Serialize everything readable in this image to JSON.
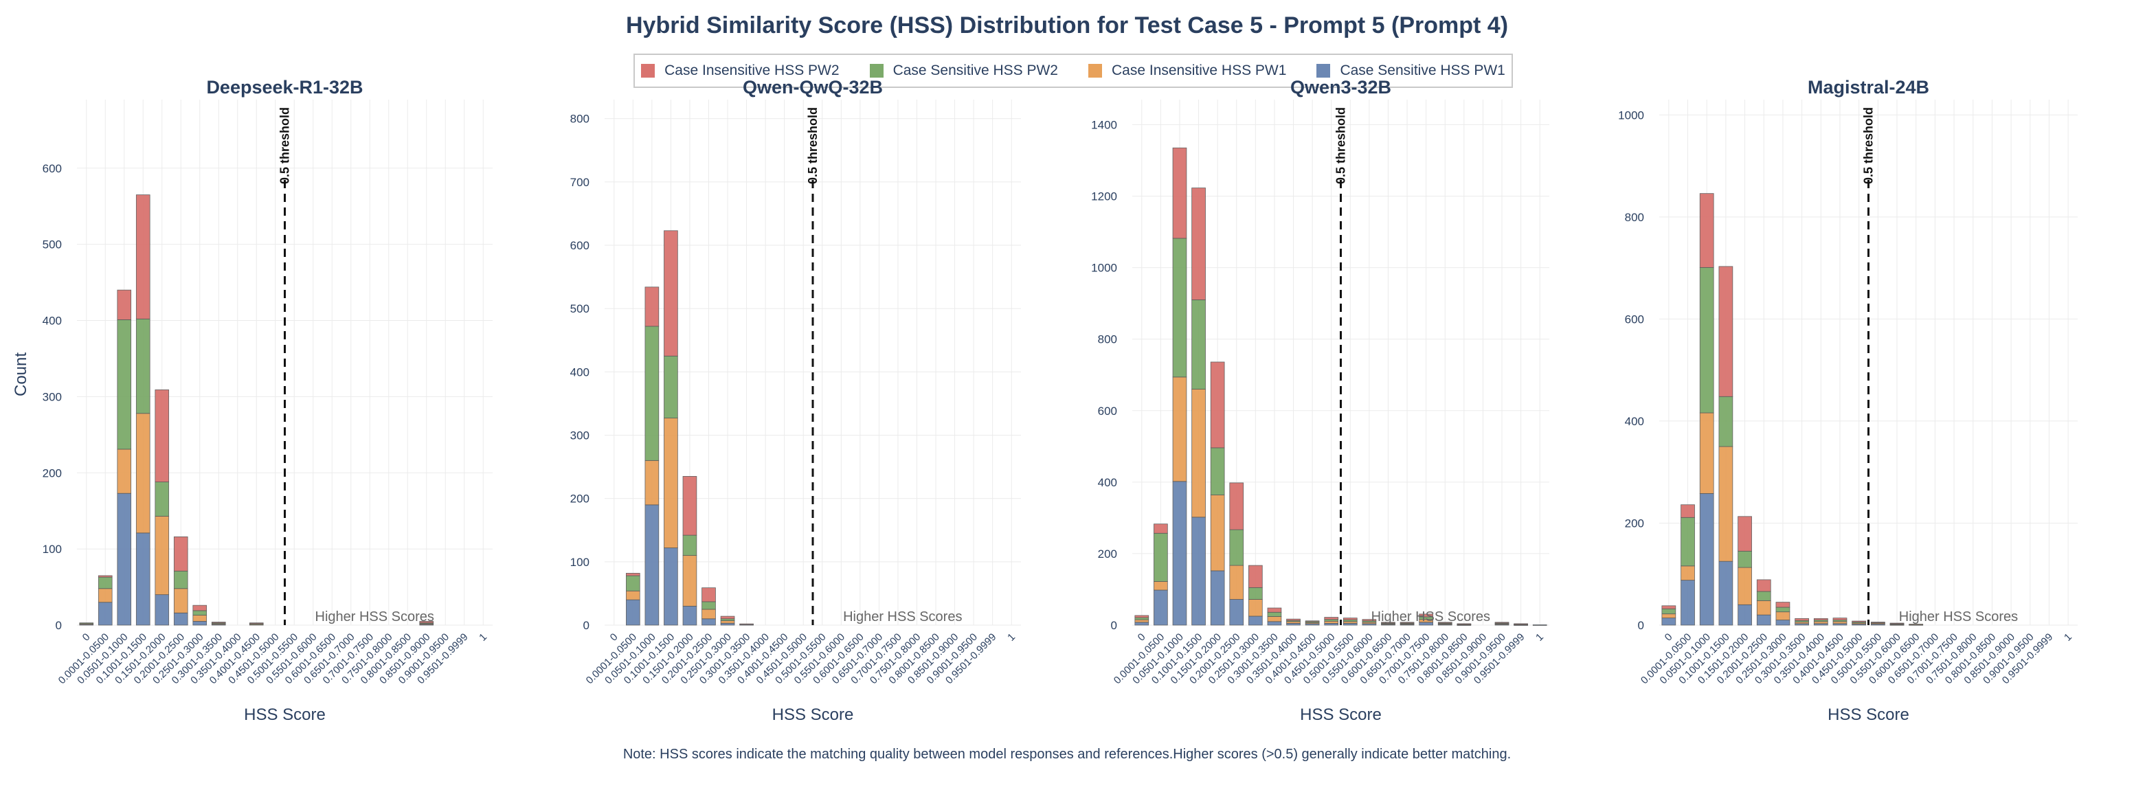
{
  "title": "Hybrid Similarity Score (HSS) Distribution for Test Case 5 - Prompt 5 (Prompt 4)",
  "note": "Note: HSS scores indicate the matching quality between model responses and references.Higher scores (>0.5) generally indicate better matching.",
  "ylabel": "Count",
  "xlabel": "HSS Score",
  "threshold_label": "0.5 threshold",
  "region_label": "Higher HSS Scores",
  "colors": {
    "Case Sensitive HSS PW1": "#6b87b3",
    "Case Insensitive HSS PW1": "#e8a15a",
    "Case Sensitive HSS PW2": "#7caa6a",
    "Case Insensitive HSS PW2": "#d9736f"
  },
  "legend": [
    "Case Insensitive HSS PW2",
    "Case Sensitive HSS PW2",
    "Case Insensitive HSS PW1",
    "Case Sensitive HSS PW1"
  ],
  "chart_data": [
    {
      "type": "bar",
      "stacked": true,
      "title": "Deepseek-R1-32B",
      "categories": [
        "0",
        "0.0001-0.0500",
        "0.0501-0.1000",
        "0.1001-0.1500",
        "0.1501-0.2000",
        "0.2001-0.2500",
        "0.2501-0.3000",
        "0.3001-0.3500",
        "0.3501-0.4000",
        "0.4001-0.4500",
        "0.4501-0.5000",
        "0.5001-0.5500",
        "0.5501-0.6000",
        "0.6001-0.6500",
        "0.6501-0.7000",
        "0.7001-0.7500",
        "0.7501-0.8000",
        "0.8001-0.8500",
        "0.8501-0.9000",
        "0.9001-0.9500",
        "0.9501-0.9999",
        "1"
      ],
      "ylim": [
        0,
        690
      ],
      "yticks": [
        0,
        100,
        200,
        300,
        400,
        500,
        600
      ],
      "threshold_index": 11,
      "series": [
        {
          "name": "Case Sensitive HSS PW1",
          "values": [
            1,
            30,
            173,
            121,
            40,
            16,
            5,
            1,
            0,
            0,
            0,
            0,
            0,
            0,
            0,
            0,
            0,
            0,
            1,
            0,
            0,
            0
          ]
        },
        {
          "name": "Case Insensitive HSS PW1",
          "values": [
            1,
            18,
            58,
            157,
            103,
            32,
            8,
            1,
            0,
            1,
            0,
            0,
            0,
            0,
            0,
            0,
            0,
            0,
            1,
            0,
            0,
            0
          ]
        },
        {
          "name": "Case Sensitive HSS PW2",
          "values": [
            1,
            15,
            170,
            124,
            45,
            23,
            6,
            1,
            0,
            1,
            0,
            0,
            0,
            0,
            0,
            0,
            0,
            0,
            1,
            0,
            0,
            0
          ]
        },
        {
          "name": "Case Insensitive HSS PW2",
          "values": [
            0,
            2,
            39,
            163,
            121,
            45,
            7,
            1,
            0,
            1,
            0,
            0,
            0,
            0,
            0,
            0,
            0,
            0,
            2,
            0,
            0,
            0
          ]
        }
      ]
    },
    {
      "type": "bar",
      "stacked": true,
      "title": "Qwen-QwQ-32B",
      "categories": [
        "0",
        "0.0001-0.0500",
        "0.0501-0.1000",
        "0.1001-0.1500",
        "0.1501-0.2000",
        "0.2001-0.2500",
        "0.2501-0.3000",
        "0.3001-0.3500",
        "0.3501-0.4000",
        "0.4001-0.4500",
        "0.4501-0.5000",
        "0.5001-0.5500",
        "0.5501-0.6000",
        "0.6001-0.6500",
        "0.6501-0.7000",
        "0.7001-0.7500",
        "0.7501-0.8000",
        "0.8001-0.8500",
        "0.8501-0.9000",
        "0.9001-0.9500",
        "0.9501-0.9999",
        "1"
      ],
      "ylim": [
        0,
        830
      ],
      "yticks": [
        0,
        100,
        200,
        300,
        400,
        500,
        600,
        700,
        800
      ],
      "threshold_index": 11,
      "series": [
        {
          "name": "Case Sensitive HSS PW1",
          "values": [
            0,
            40,
            190,
            122,
            30,
            10,
            3,
            1,
            0,
            0,
            0,
            0,
            0,
            0,
            0,
            0,
            0,
            0,
            0,
            0,
            0,
            0
          ]
        },
        {
          "name": "Case Insensitive HSS PW1",
          "values": [
            0,
            14,
            70,
            205,
            80,
            15,
            4,
            0,
            0,
            0,
            0,
            0,
            0,
            0,
            0,
            0,
            0,
            0,
            0,
            0,
            0,
            0
          ]
        },
        {
          "name": "Case Sensitive HSS PW2",
          "values": [
            0,
            24,
            212,
            98,
            32,
            12,
            3,
            0,
            0,
            0,
            0,
            0,
            0,
            0,
            0,
            0,
            0,
            0,
            0,
            0,
            0,
            0
          ]
        },
        {
          "name": "Case Insensitive HSS PW2",
          "values": [
            0,
            4,
            62,
            198,
            93,
            22,
            4,
            1,
            0,
            0,
            0,
            0,
            0,
            0,
            0,
            0,
            0,
            0,
            0,
            0,
            0,
            0
          ]
        }
      ]
    },
    {
      "type": "bar",
      "stacked": true,
      "title": "Qwen3-32B",
      "categories": [
        "0",
        "0.0001-0.0500",
        "0.0501-0.1000",
        "0.1001-0.1500",
        "0.1501-0.2000",
        "0.2001-0.2500",
        "0.2501-0.3000",
        "0.3001-0.3500",
        "0.3501-0.4000",
        "0.4001-0.4500",
        "0.4501-0.5000",
        "0.5001-0.5500",
        "0.5501-0.6000",
        "0.6001-0.6500",
        "0.6501-0.7000",
        "0.7001-0.7500",
        "0.7501-0.8000",
        "0.8001-0.8500",
        "0.8501-0.9000",
        "0.9001-0.9500",
        "0.9501-0.9999",
        "1"
      ],
      "ylim": [
        0,
        1470
      ],
      "yticks": [
        0,
        200,
        400,
        600,
        800,
        1000,
        1200,
        1400
      ],
      "threshold_index": 11,
      "series": [
        {
          "name": "Case Sensitive HSS PW1",
          "values": [
            8,
            98,
            402,
            302,
            152,
            72,
            25,
            10,
            5,
            4,
            5,
            5,
            4,
            2,
            2,
            8,
            2,
            1,
            0,
            2,
            1,
            1
          ]
        },
        {
          "name": "Case Insensitive HSS PW1",
          "values": [
            7,
            24,
            292,
            358,
            212,
            95,
            47,
            14,
            5,
            3,
            6,
            5,
            4,
            2,
            2,
            8,
            2,
            1,
            0,
            2,
            1,
            0
          ]
        },
        {
          "name": "Case Sensitive HSS PW2",
          "values": [
            6,
            135,
            388,
            250,
            132,
            100,
            33,
            12,
            3,
            3,
            5,
            5,
            4,
            2,
            2,
            7,
            2,
            1,
            0,
            2,
            1,
            0
          ]
        },
        {
          "name": "Case Insensitive HSS PW2",
          "values": [
            6,
            26,
            253,
            313,
            240,
            131,
            62,
            12,
            4,
            2,
            6,
            5,
            4,
            2,
            2,
            8,
            2,
            1,
            0,
            2,
            1,
            0
          ]
        }
      ]
    },
    {
      "type": "bar",
      "stacked": true,
      "title": "Magistral-24B",
      "categories": [
        "0",
        "0.0001-0.0500",
        "0.0501-0.1000",
        "0.1001-0.1500",
        "0.1501-0.2000",
        "0.2001-0.2500",
        "0.2501-0.3000",
        "0.3001-0.3500",
        "0.3501-0.4000",
        "0.4001-0.4500",
        "0.4501-0.5000",
        "0.5001-0.5500",
        "0.5501-0.6000",
        "0.6001-0.6500",
        "0.6501-0.7000",
        "0.7001-0.7500",
        "0.7501-0.8000",
        "0.8001-0.8500",
        "0.8501-0.9000",
        "0.9001-0.9500",
        "0.9501-0.9999",
        "1"
      ],
      "ylim": [
        0,
        1030
      ],
      "yticks": [
        0,
        200,
        400,
        600,
        800,
        1000
      ],
      "threshold_index": 11,
      "series": [
        {
          "name": "Case Sensitive HSS PW1",
          "values": [
            14,
            88,
            258,
            125,
            40,
            20,
            10,
            3,
            3,
            3,
            2,
            2,
            1,
            1,
            0,
            0,
            0,
            0,
            0,
            0,
            0,
            0
          ]
        },
        {
          "name": "Case Insensitive HSS PW1",
          "values": [
            8,
            28,
            158,
            225,
            73,
            28,
            16,
            3,
            4,
            4,
            2,
            2,
            1,
            1,
            0,
            0,
            0,
            0,
            0,
            0,
            0,
            0
          ]
        },
        {
          "name": "Case Sensitive HSS PW2",
          "values": [
            10,
            95,
            285,
            98,
            32,
            18,
            9,
            3,
            3,
            3,
            2,
            1,
            1,
            0,
            0,
            0,
            0,
            0,
            0,
            0,
            0,
            0
          ]
        },
        {
          "name": "Case Insensitive HSS PW2",
          "values": [
            6,
            25,
            145,
            255,
            68,
            23,
            10,
            4,
            3,
            4,
            2,
            1,
            1,
            0,
            0,
            0,
            0,
            0,
            0,
            0,
            0,
            0
          ]
        }
      ]
    }
  ]
}
